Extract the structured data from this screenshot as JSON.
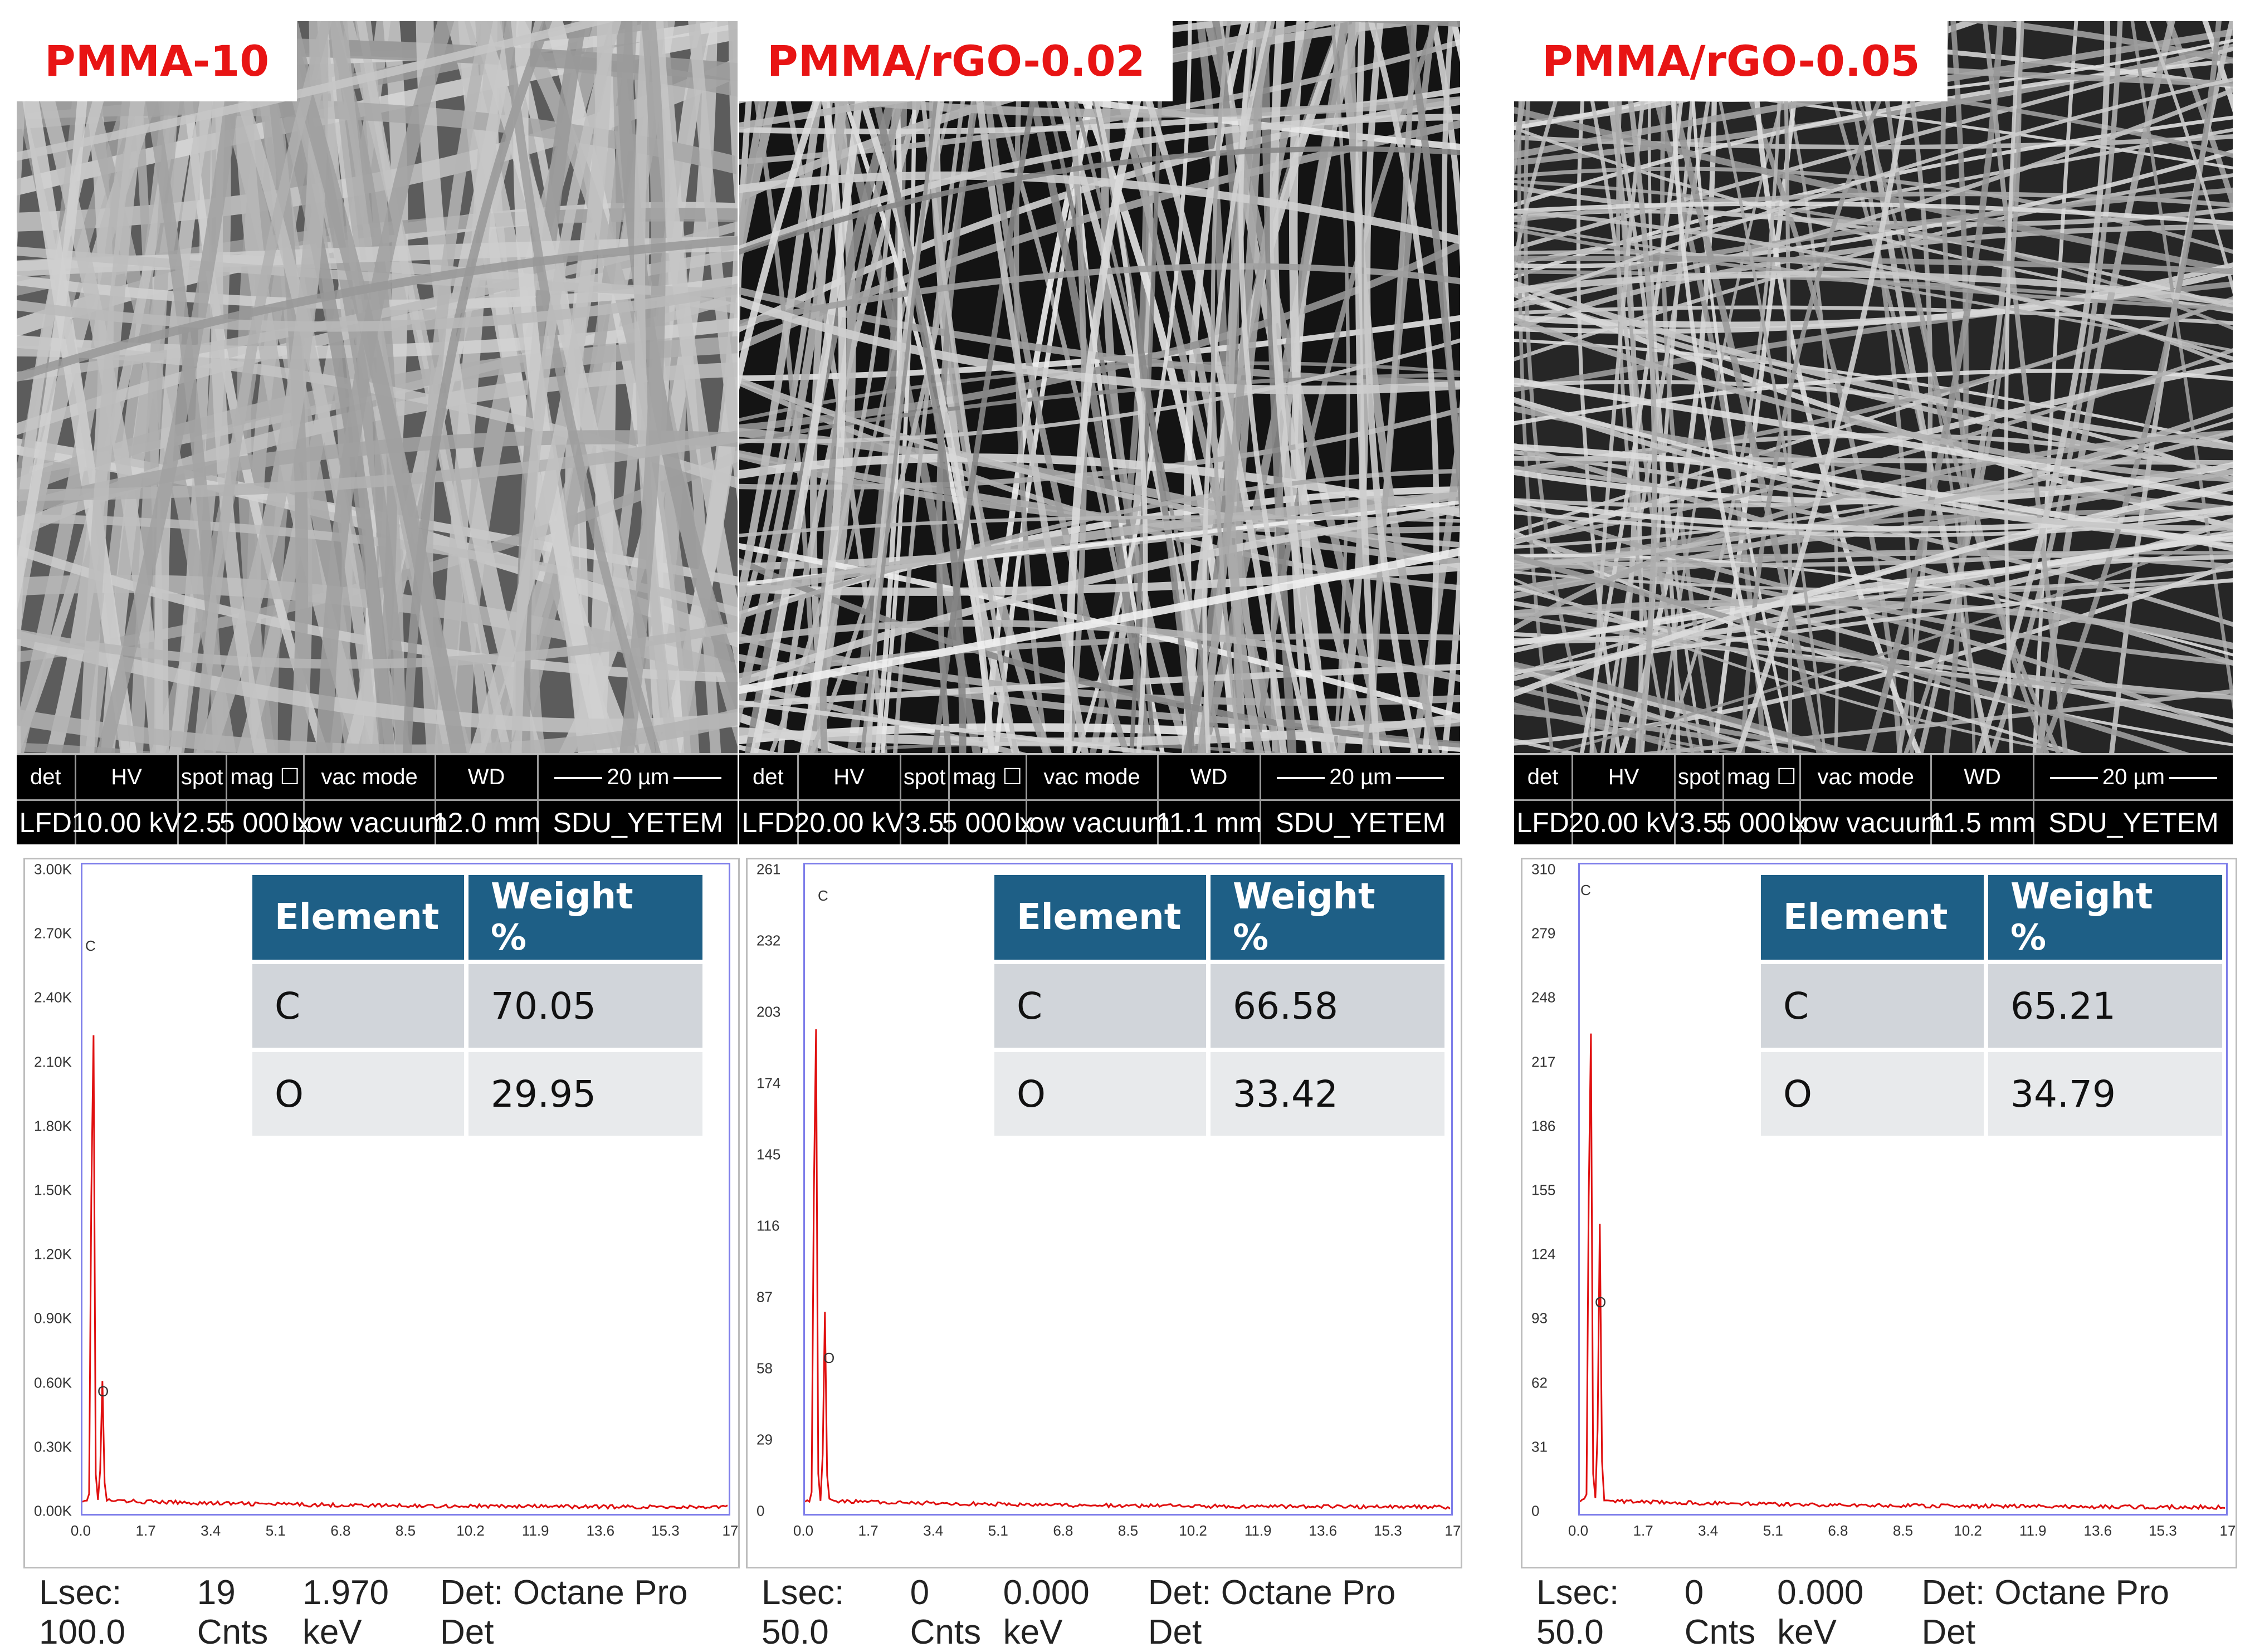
{
  "panels": [
    {
      "sample": "PMMA-10",
      "sem_headers": [
        "det",
        "HV",
        "spot",
        "mag ☐",
        "vac mode",
        "WD"
      ],
      "sem_values": [
        "LFD",
        "10.00 kV",
        "2.5",
        "5 000 x",
        "Low vacuum",
        "12.0 mm"
      ],
      "scale_bar": "20 µm",
      "operator": "SDU_YETEM",
      "table_headers": [
        "Element",
        "Weight %"
      ],
      "table_rows": [
        [
          "C",
          "70.05"
        ],
        [
          "O",
          "29.95"
        ]
      ],
      "y_ticks": [
        "0.00K",
        "0.30K",
        "0.60K",
        "0.90K",
        "1.20K",
        "1.50K",
        "1.80K",
        "2.10K",
        "2.40K",
        "2.70K",
        "3.00K"
      ],
      "x_ticks": [
        "0.0",
        "1.7",
        "3.4",
        "5.1",
        "6.8",
        "8.5",
        "10.2",
        "11.9",
        "13.6",
        "15.3",
        "17"
      ],
      "peak_labels": [
        "C",
        "O"
      ],
      "status": [
        "Lsec: 100.0",
        "19 Cnts",
        "1.970 keV",
        "Det: Octane Pro Det"
      ]
    },
    {
      "sample": "PMMA/rGO-0.02",
      "sem_headers": [
        "det",
        "HV",
        "spot",
        "mag ☐",
        "vac mode",
        "WD"
      ],
      "sem_values": [
        "LFD",
        "20.00 kV",
        "3.5",
        "5 000 x",
        "Low vacuum",
        "11.1 mm"
      ],
      "scale_bar": "20 µm",
      "operator": "SDU_YETEM",
      "table_headers": [
        "Element",
        "Weight %"
      ],
      "table_rows": [
        [
          "C",
          "66.58"
        ],
        [
          "O",
          "33.42"
        ]
      ],
      "y_ticks": [
        "0",
        "29",
        "58",
        "87",
        "116",
        "145",
        "174",
        "203",
        "232",
        "261"
      ],
      "x_ticks": [
        "0.0",
        "1.7",
        "3.4",
        "5.1",
        "6.8",
        "8.5",
        "10.2",
        "11.9",
        "13.6",
        "15.3",
        "17"
      ],
      "peak_labels": [
        "C",
        "O"
      ],
      "status": [
        "Lsec: 50.0",
        "0 Cnts",
        "0.000 keV",
        "Det: Octane Pro Det"
      ]
    },
    {
      "sample": "PMMA/rGO-0.05",
      "sem_headers": [
        "det",
        "HV",
        "spot",
        "mag ☐",
        "vac mode",
        "WD"
      ],
      "sem_values": [
        "LFD",
        "20.00 kV",
        "3.5",
        "5 000 x",
        "Low vacuum",
        "11.5 mm"
      ],
      "scale_bar": "20 µm",
      "operator": "SDU_YETEM",
      "table_headers": [
        "Element",
        "Weight %"
      ],
      "table_rows": [
        [
          "C",
          "65.21"
        ],
        [
          "O",
          "34.79"
        ]
      ],
      "y_ticks": [
        "0",
        "31",
        "62",
        "93",
        "124",
        "155",
        "186",
        "217",
        "248",
        "279",
        "310"
      ],
      "x_ticks": [
        "0.0",
        "1.7",
        "3.4",
        "5.1",
        "6.8",
        "8.5",
        "10.2",
        "11.9",
        "13.6",
        "15.3",
        "17"
      ],
      "peak_labels": [
        "C",
        "O"
      ],
      "status": [
        "Lsec: 50.0",
        "0 Cnts",
        "0.000 keV",
        "Det: Octane Pro Det"
      ]
    }
  ],
  "colors": {
    "label_red": "#e81414",
    "table_header": "#1e5f86",
    "spectrum": "#e01010",
    "plot_frame": "#7e7eea"
  }
}
